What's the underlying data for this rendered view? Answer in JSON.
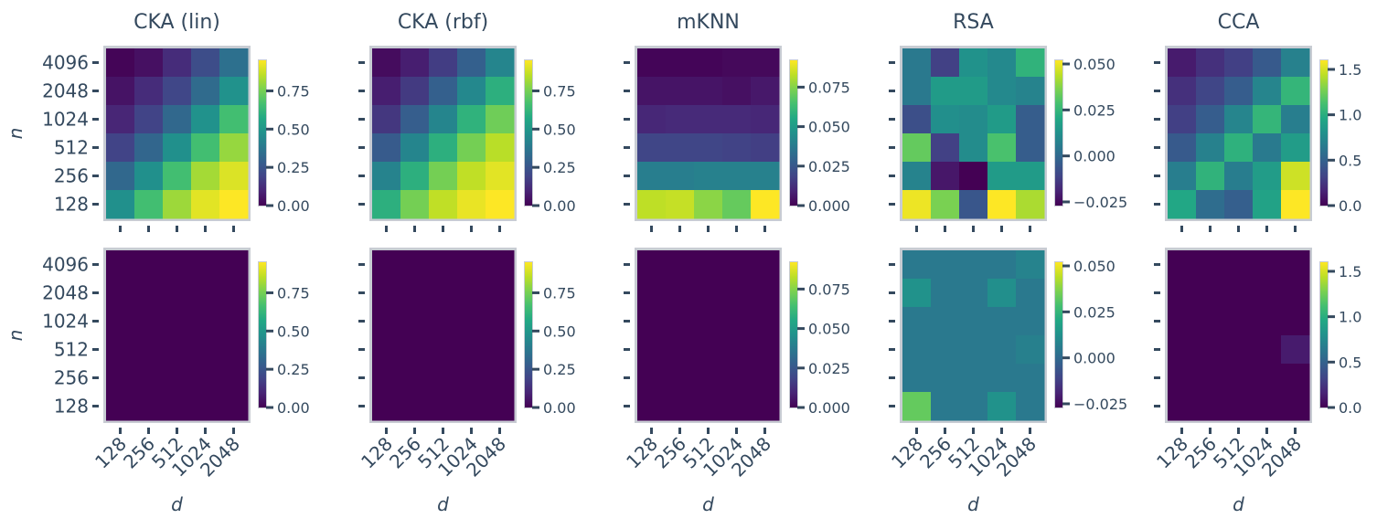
{
  "chart_data": {
    "type": "heatmap",
    "layout": "2 rows x 5 columns of heatmaps",
    "colormap": "viridis",
    "xlabel": "d",
    "ylabel": "n",
    "x_categories": [
      "128",
      "256",
      "512",
      "1024",
      "2048"
    ],
    "y_categories": [
      "4096",
      "2048",
      "1024",
      "512",
      "256",
      "128"
    ],
    "panels": [
      {
        "row": 0,
        "title": "CKA (lin)",
        "vmin": 0.0,
        "vmax": 0.95,
        "colorbar_ticks": [
          "0.00",
          "0.25",
          "0.50",
          "0.75"
        ],
        "colorbar_tick_values": [
          0.0,
          0.25,
          0.5,
          0.75
        ],
        "values": [
          [
            0.01,
            0.04,
            0.12,
            0.22,
            0.35
          ],
          [
            0.05,
            0.12,
            0.2,
            0.33,
            0.48
          ],
          [
            0.1,
            0.19,
            0.32,
            0.48,
            0.66
          ],
          [
            0.19,
            0.31,
            0.47,
            0.66,
            0.8
          ],
          [
            0.32,
            0.47,
            0.66,
            0.82,
            0.9
          ],
          [
            0.47,
            0.66,
            0.81,
            0.91,
            0.95
          ]
        ]
      },
      {
        "row": 0,
        "title": "CKA (rbf)",
        "vmin": 0.0,
        "vmax": 0.95,
        "colorbar_ticks": [
          "0.00",
          "0.25",
          "0.50",
          "0.75"
        ],
        "colorbar_tick_values": [
          0.0,
          0.25,
          0.5,
          0.75
        ],
        "values": [
          [
            0.03,
            0.08,
            0.17,
            0.29,
            0.43
          ],
          [
            0.08,
            0.16,
            0.29,
            0.44,
            0.6
          ],
          [
            0.15,
            0.28,
            0.43,
            0.61,
            0.74
          ],
          [
            0.27,
            0.43,
            0.6,
            0.75,
            0.85
          ],
          [
            0.42,
            0.6,
            0.75,
            0.86,
            0.91
          ],
          [
            0.6,
            0.75,
            0.86,
            0.92,
            0.95
          ]
        ]
      },
      {
        "row": 0,
        "title": "mKNN",
        "vmin": 0.0,
        "vmax": 0.092,
        "colorbar_ticks": [
          "0.000",
          "0.025",
          "0.050",
          "0.075"
        ],
        "colorbar_tick_values": [
          0.0,
          0.025,
          0.05,
          0.075
        ],
        "values": [
          [
            0.001,
            0.001,
            0.001,
            0.002,
            0.002
          ],
          [
            0.005,
            0.005,
            0.005,
            0.004,
            0.006
          ],
          [
            0.01,
            0.011,
            0.011,
            0.011,
            0.01
          ],
          [
            0.019,
            0.019,
            0.019,
            0.018,
            0.017
          ],
          [
            0.039,
            0.039,
            0.04,
            0.04,
            0.04
          ],
          [
            0.083,
            0.084,
            0.076,
            0.07,
            0.092
          ]
        ]
      },
      {
        "row": 0,
        "title": "RSA",
        "vmin": -0.027,
        "vmax": 0.052,
        "colorbar_ticks": [
          "−0.025",
          "0.000",
          "0.025",
          "0.050"
        ],
        "colorbar_tick_values": [
          -0.025,
          0.0,
          0.025,
          0.05
        ],
        "values": [
          [
            0.005,
            -0.012,
            0.013,
            0.01,
            0.024
          ],
          [
            0.005,
            0.016,
            0.016,
            0.01,
            0.008
          ],
          [
            -0.008,
            0.012,
            0.011,
            0.016,
            -0.004
          ],
          [
            0.033,
            -0.012,
            0.011,
            0.029,
            -0.004
          ],
          [
            0.008,
            -0.022,
            -0.027,
            0.016,
            0.016
          ],
          [
            0.05,
            0.036,
            -0.006,
            0.052,
            0.042
          ]
        ]
      },
      {
        "row": 0,
        "title": "CCA",
        "vmin": 0.0,
        "vmax": 1.6,
        "colorbar_ticks": [
          "0.0",
          "0.5",
          "1.0",
          "1.5"
        ],
        "colorbar_tick_values": [
          0.0,
          0.5,
          1.0,
          1.5
        ],
        "values": [
          [
            0.12,
            0.22,
            0.3,
            0.45,
            0.7
          ],
          [
            0.22,
            0.33,
            0.47,
            0.72,
            1.05
          ],
          [
            0.3,
            0.47,
            0.72,
            1.05,
            0.68
          ],
          [
            0.45,
            0.7,
            1.02,
            0.65,
            0.88
          ],
          [
            0.68,
            1.03,
            0.67,
            0.88,
            1.48
          ],
          [
            0.95,
            0.57,
            0.48,
            0.92,
            1.6
          ]
        ]
      },
      {
        "row": 1,
        "title": "",
        "vmin": 0.0,
        "vmax": 0.95,
        "colorbar_ticks": [
          "0.00",
          "0.25",
          "0.50",
          "0.75"
        ],
        "colorbar_tick_values": [
          0.0,
          0.25,
          0.5,
          0.75
        ],
        "values": [
          [
            0,
            0,
            0,
            0,
            0
          ],
          [
            0,
            0,
            0,
            0,
            0
          ],
          [
            0,
            0,
            0,
            0,
            0
          ],
          [
            0,
            0,
            0,
            0,
            0
          ],
          [
            0,
            0,
            0,
            0,
            0
          ],
          [
            0,
            0,
            0,
            0,
            0
          ]
        ]
      },
      {
        "row": 1,
        "title": "",
        "vmin": 0.0,
        "vmax": 0.95,
        "colorbar_ticks": [
          "0.00",
          "0.25",
          "0.50",
          "0.75"
        ],
        "colorbar_tick_values": [
          0.0,
          0.25,
          0.5,
          0.75
        ],
        "values": [
          [
            0,
            0,
            0,
            0,
            0
          ],
          [
            0,
            0,
            0,
            0,
            0
          ],
          [
            0,
            0,
            0,
            0,
            0
          ],
          [
            0,
            0,
            0,
            0,
            0
          ],
          [
            0,
            0,
            0,
            0,
            0
          ],
          [
            0,
            0,
            0,
            0,
            0
          ]
        ]
      },
      {
        "row": 1,
        "title": "",
        "vmin": 0.0,
        "vmax": 0.092,
        "colorbar_ticks": [
          "0.000",
          "0.025",
          "0.050",
          "0.075"
        ],
        "colorbar_tick_values": [
          0.0,
          0.025,
          0.05,
          0.075
        ],
        "values": [
          [
            0,
            0,
            0,
            0,
            0
          ],
          [
            0,
            0,
            0,
            0,
            0
          ],
          [
            0,
            0,
            0,
            0,
            0
          ],
          [
            0,
            0,
            0,
            0,
            0
          ],
          [
            0,
            0,
            0,
            0,
            0
          ],
          [
            0,
            0,
            0,
            0,
            0
          ]
        ]
      },
      {
        "row": 1,
        "title": "",
        "vmin": -0.027,
        "vmax": 0.052,
        "colorbar_ticks": [
          "−0.025",
          "0.000",
          "0.025",
          "0.050"
        ],
        "colorbar_tick_values": [
          -0.025,
          0.0,
          0.025,
          0.05
        ],
        "values": [
          [
            0.005,
            0.005,
            0.005,
            0.005,
            0.008
          ],
          [
            0.013,
            0.005,
            0.005,
            0.012,
            0.005
          ],
          [
            0.005,
            0.005,
            0.005,
            0.005,
            0.005
          ],
          [
            0.005,
            0.005,
            0.005,
            0.005,
            0.007
          ],
          [
            0.005,
            0.005,
            0.005,
            0.005,
            0.005
          ],
          [
            0.033,
            0.005,
            0.005,
            0.013,
            0.005
          ]
        ]
      },
      {
        "row": 1,
        "title": "",
        "vmin": 0.0,
        "vmax": 1.6,
        "colorbar_ticks": [
          "0.0",
          "0.5",
          "1.0",
          "1.5"
        ],
        "colorbar_tick_values": [
          0.0,
          0.5,
          1.0,
          1.5
        ],
        "values": [
          [
            0,
            0,
            0,
            0,
            0
          ],
          [
            0,
            0,
            0,
            0,
            0
          ],
          [
            0,
            0,
            0,
            0,
            0
          ],
          [
            0,
            0,
            0,
            0,
            0.12
          ],
          [
            0,
            0,
            0,
            0,
            0
          ],
          [
            0,
            0,
            0,
            0,
            0
          ]
        ]
      }
    ]
  }
}
